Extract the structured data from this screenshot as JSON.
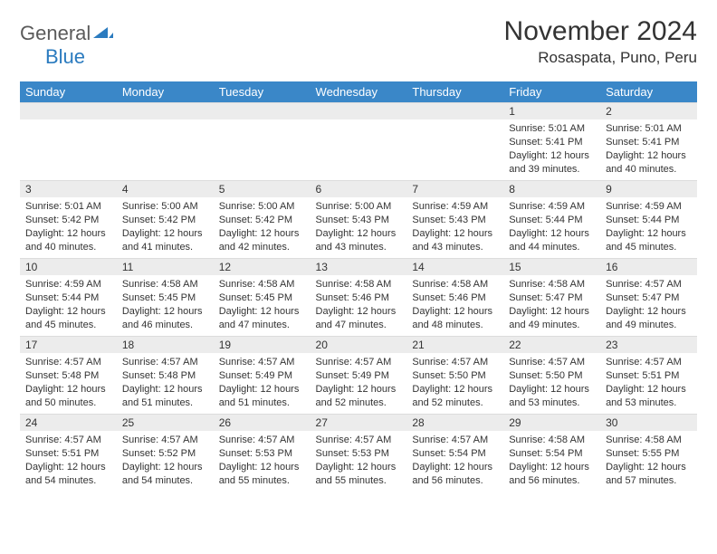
{
  "logo": {
    "text1": "General",
    "text2": "Blue"
  },
  "title": "November 2024",
  "location": "Rosaspata, Puno, Peru",
  "colors": {
    "header_bg": "#3a87c8",
    "header_text": "#ffffff",
    "daynum_bg": "#ececec",
    "text": "#333333",
    "logo_gray": "#5a5a5a",
    "logo_blue": "#2b7bbf"
  },
  "weekdays": [
    "Sunday",
    "Monday",
    "Tuesday",
    "Wednesday",
    "Thursday",
    "Friday",
    "Saturday"
  ],
  "weeks": [
    [
      null,
      null,
      null,
      null,
      null,
      {
        "n": "1",
        "sr": "5:01 AM",
        "ss": "5:41 PM",
        "dl": "12 hours and 39 minutes."
      },
      {
        "n": "2",
        "sr": "5:01 AM",
        "ss": "5:41 PM",
        "dl": "12 hours and 40 minutes."
      }
    ],
    [
      {
        "n": "3",
        "sr": "5:01 AM",
        "ss": "5:42 PM",
        "dl": "12 hours and 40 minutes."
      },
      {
        "n": "4",
        "sr": "5:00 AM",
        "ss": "5:42 PM",
        "dl": "12 hours and 41 minutes."
      },
      {
        "n": "5",
        "sr": "5:00 AM",
        "ss": "5:42 PM",
        "dl": "12 hours and 42 minutes."
      },
      {
        "n": "6",
        "sr": "5:00 AM",
        "ss": "5:43 PM",
        "dl": "12 hours and 43 minutes."
      },
      {
        "n": "7",
        "sr": "4:59 AM",
        "ss": "5:43 PM",
        "dl": "12 hours and 43 minutes."
      },
      {
        "n": "8",
        "sr": "4:59 AM",
        "ss": "5:44 PM",
        "dl": "12 hours and 44 minutes."
      },
      {
        "n": "9",
        "sr": "4:59 AM",
        "ss": "5:44 PM",
        "dl": "12 hours and 45 minutes."
      }
    ],
    [
      {
        "n": "10",
        "sr": "4:59 AM",
        "ss": "5:44 PM",
        "dl": "12 hours and 45 minutes."
      },
      {
        "n": "11",
        "sr": "4:58 AM",
        "ss": "5:45 PM",
        "dl": "12 hours and 46 minutes."
      },
      {
        "n": "12",
        "sr": "4:58 AM",
        "ss": "5:45 PM",
        "dl": "12 hours and 47 minutes."
      },
      {
        "n": "13",
        "sr": "4:58 AM",
        "ss": "5:46 PM",
        "dl": "12 hours and 47 minutes."
      },
      {
        "n": "14",
        "sr": "4:58 AM",
        "ss": "5:46 PM",
        "dl": "12 hours and 48 minutes."
      },
      {
        "n": "15",
        "sr": "4:58 AM",
        "ss": "5:47 PM",
        "dl": "12 hours and 49 minutes."
      },
      {
        "n": "16",
        "sr": "4:57 AM",
        "ss": "5:47 PM",
        "dl": "12 hours and 49 minutes."
      }
    ],
    [
      {
        "n": "17",
        "sr": "4:57 AM",
        "ss": "5:48 PM",
        "dl": "12 hours and 50 minutes."
      },
      {
        "n": "18",
        "sr": "4:57 AM",
        "ss": "5:48 PM",
        "dl": "12 hours and 51 minutes."
      },
      {
        "n": "19",
        "sr": "4:57 AM",
        "ss": "5:49 PM",
        "dl": "12 hours and 51 minutes."
      },
      {
        "n": "20",
        "sr": "4:57 AM",
        "ss": "5:49 PM",
        "dl": "12 hours and 52 minutes."
      },
      {
        "n": "21",
        "sr": "4:57 AM",
        "ss": "5:50 PM",
        "dl": "12 hours and 52 minutes."
      },
      {
        "n": "22",
        "sr": "4:57 AM",
        "ss": "5:50 PM",
        "dl": "12 hours and 53 minutes."
      },
      {
        "n": "23",
        "sr": "4:57 AM",
        "ss": "5:51 PM",
        "dl": "12 hours and 53 minutes."
      }
    ],
    [
      {
        "n": "24",
        "sr": "4:57 AM",
        "ss": "5:51 PM",
        "dl": "12 hours and 54 minutes."
      },
      {
        "n": "25",
        "sr": "4:57 AM",
        "ss": "5:52 PM",
        "dl": "12 hours and 54 minutes."
      },
      {
        "n": "26",
        "sr": "4:57 AM",
        "ss": "5:53 PM",
        "dl": "12 hours and 55 minutes."
      },
      {
        "n": "27",
        "sr": "4:57 AM",
        "ss": "5:53 PM",
        "dl": "12 hours and 55 minutes."
      },
      {
        "n": "28",
        "sr": "4:57 AM",
        "ss": "5:54 PM",
        "dl": "12 hours and 56 minutes."
      },
      {
        "n": "29",
        "sr": "4:58 AM",
        "ss": "5:54 PM",
        "dl": "12 hours and 56 minutes."
      },
      {
        "n": "30",
        "sr": "4:58 AM",
        "ss": "5:55 PM",
        "dl": "12 hours and 57 minutes."
      }
    ]
  ],
  "labels": {
    "sunrise": "Sunrise: ",
    "sunset": "Sunset: ",
    "daylight": "Daylight: "
  }
}
